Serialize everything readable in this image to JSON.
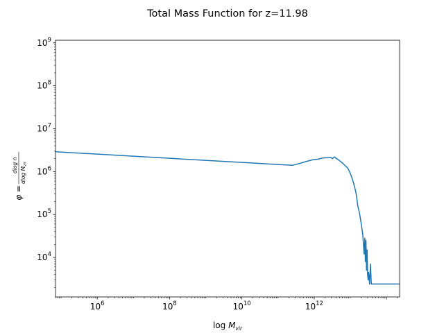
{
  "chart_data": {
    "type": "line",
    "title": "Total Mass Function for z=11.98",
    "xlabel": {
      "base": "log ",
      "main": "M",
      "sub": "vir"
    },
    "ylabel": {
      "phi": "φ = ",
      "num": "dlog n",
      "den_prefix": "dlog ",
      "den_main": "M",
      "den_sub": "vir"
    },
    "x_scale": "log",
    "y_scale": "log",
    "xlim": [
      70000,
      230000000000000.0
    ],
    "ylim": [
      1200,
      1150000000.0
    ],
    "grid": false,
    "legend": "none",
    "line_color": "#1f77b4",
    "x_ticks": [
      {
        "value": 1000000.0,
        "base": "10",
        "exp": "6"
      },
      {
        "value": 100000000.0,
        "base": "10",
        "exp": "8"
      },
      {
        "value": 10000000000.0,
        "base": "10",
        "exp": "10"
      },
      {
        "value": 1000000000000.0,
        "base": "10",
        "exp": "12"
      }
    ],
    "y_ticks": [
      {
        "value": 10000.0,
        "base": "10",
        "exp": "4"
      },
      {
        "value": 100000.0,
        "base": "10",
        "exp": "5"
      },
      {
        "value": 1000000.0,
        "base": "10",
        "exp": "6"
      },
      {
        "value": 10000000.0,
        "base": "10",
        "exp": "7"
      },
      {
        "value": 100000000.0,
        "base": "10",
        "exp": "8"
      },
      {
        "value": 1000000000.0,
        "base": "10",
        "exp": "9"
      }
    ],
    "series": [
      {
        "points": [
          [
            70000,
            2900000.0
          ],
          [
            250000000000.0,
            1400000.0
          ],
          [
            400000000000.0,
            1550000.0
          ],
          [
            600000000000.0,
            1720000.0
          ],
          [
            900000000000.0,
            1880000.0
          ],
          [
            1300000000000.0,
            1950000.0
          ],
          [
            1600000000000.0,
            2050000.0
          ],
          [
            2000000000000.0,
            2100000.0
          ],
          [
            2500000000000.0,
            2100000.0
          ],
          [
            2900000000000.0,
            2150000.0
          ],
          [
            3200000000000.0,
            2000000.0
          ],
          [
            3600000000000.0,
            2200000.0
          ],
          [
            4200000000000.0,
            2000000.0
          ],
          [
            5000000000000.0,
            1800000.0
          ],
          [
            6000000000000.0,
            1600000.0
          ],
          [
            7000000000000.0,
            1400000.0
          ],
          [
            8500000000000.0,
            1200000.0
          ],
          [
            10000000000000.0,
            900000.0
          ],
          [
            11500000000000.0,
            650000.0
          ],
          [
            13000000000000.0,
            450000.0
          ],
          [
            14000000000000.0,
            350000.0
          ],
          [
            15000000000000.0,
            250000.0
          ],
          [
            16000000000000.0,
            160000.0
          ],
          [
            17000000000000.0,
            130000.0
          ],
          [
            18000000000000.0,
            105000.0
          ],
          [
            19000000000000.0,
            80000.0
          ],
          [
            20000000000000.0,
            60000.0
          ],
          [
            21000000000000.0,
            45000.0
          ],
          [
            22000000000000.0,
            35000.0
          ],
          [
            23000000000000.0,
            20000.0
          ],
          [
            24000000000000.0,
            12000.0
          ],
          [
            25000000000000.0,
            28000.0
          ],
          [
            26000000000000.0,
            8000.0
          ],
          [
            27000000000000.0,
            25000.0
          ],
          [
            28000000000000.0,
            5000.0
          ],
          [
            29000000000000.0,
            15000.0
          ],
          [
            30000000000000.0,
            4000.0
          ],
          [
            31000000000000.0,
            3000.0
          ],
          [
            32000000000000.0,
            4500.0
          ],
          [
            34000000000000.0,
            2400.0
          ],
          [
            36000000000000.0,
            7000.0
          ],
          [
            38000000000000.0,
            2400.0
          ],
          [
            230000000000000.0,
            2400.0
          ]
        ]
      }
    ]
  }
}
